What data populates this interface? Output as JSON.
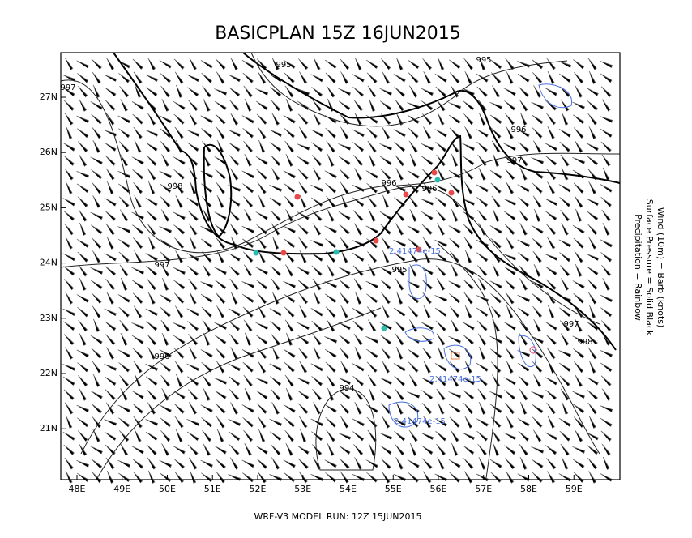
{
  "header": {
    "title": "BASICPLAN 15Z 16JUN2015"
  },
  "footer": {
    "text": "WRF-V3 MODEL RUN: 12Z 15JUN2015"
  },
  "legend": [
    "Precipitation = Rainbow",
    "Surface Pressure = Solid Black",
    "Wind (10m) = Barb (knots)"
  ],
  "lon_labels": [
    "48E",
    "49E",
    "50E",
    "51E",
    "52E",
    "53E",
    "54E",
    "55E",
    "56E",
    "57E",
    "58E",
    "59E"
  ],
  "lat_labels": [
    "27N",
    "26N",
    "25N",
    "24N",
    "23N",
    "22N",
    "21N"
  ],
  "contour_labels": [
    "995",
    "995",
    "997",
    "996",
    "997",
    "998",
    "996",
    "996",
    "997",
    "995",
    "997",
    "998",
    "996",
    "994"
  ],
  "precip_labels": [
    "2.41474e-15",
    "2.41474e-15",
    "2.41474e-15"
  ]
}
